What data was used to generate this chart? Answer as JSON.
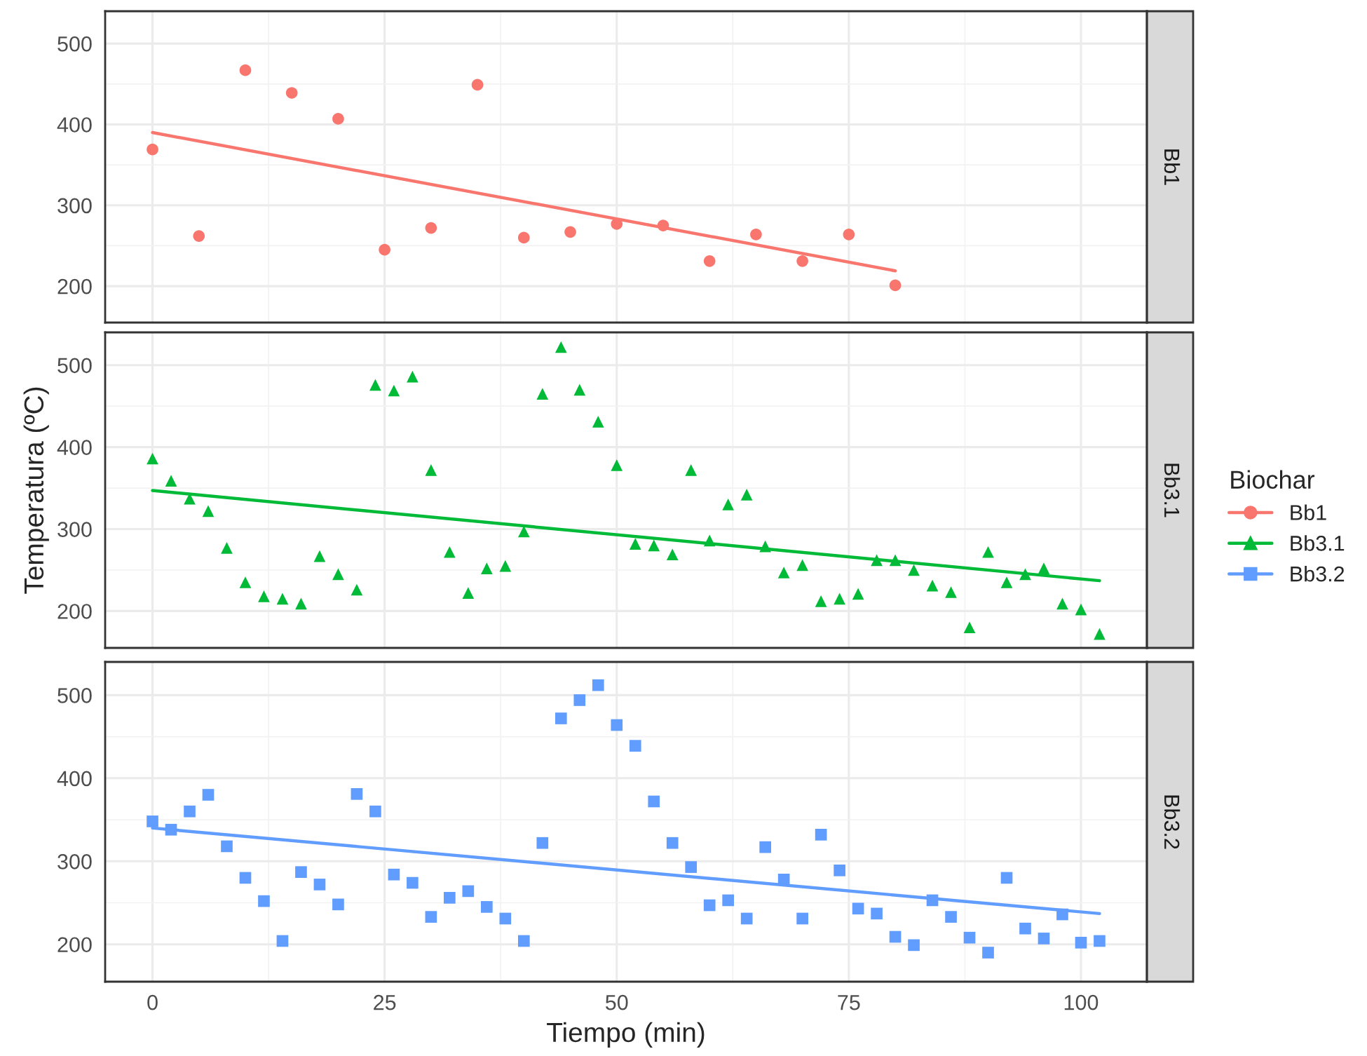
{
  "chart_data": [
    {
      "type": "scatter",
      "annotations": [
        "Bb1"
      ],
      "legend": "right",
      "legend_title": "Biochar",
      "grid": true,
      "tick_labels": "y",
      "xlim": [
        -5.1,
        107.1
      ],
      "xticks": [
        0,
        25,
        50,
        75,
        100
      ],
      "ylim": [
        155,
        540
      ],
      "yticks": [
        200,
        300,
        400,
        500
      ],
      "series": [
        {
          "name": "Bb1",
          "color": "#f8766d",
          "marker": "circle",
          "x": [
            0,
            5,
            10,
            15,
            20,
            25,
            30,
            35,
            40,
            45,
            50,
            55,
            60,
            65,
            70,
            75,
            80
          ],
          "values": [
            369,
            262,
            467,
            439,
            407,
            245,
            272,
            449,
            260,
            267,
            277,
            275,
            231,
            264,
            231,
            264,
            201
          ]
        },
        {
          "type": "line",
          "color": "#f8766d",
          "x": [
            0,
            80
          ],
          "values": [
            390,
            219
          ]
        }
      ]
    },
    {
      "type": "scatter",
      "annotations": [
        "Bb3.1"
      ],
      "ylabel": "Temperatura (ºC)",
      "legend": "right",
      "grid": true,
      "tick_labels": "y",
      "xlim": [
        -5.1,
        107.1
      ],
      "xticks": [
        0,
        25,
        50,
        75,
        100
      ],
      "ylim": [
        155,
        540
      ],
      "yticks": [
        200,
        300,
        400,
        500
      ],
      "series": [
        {
          "name": "Bb3.1",
          "color": "#00ba38",
          "marker": "triangle",
          "x": [
            0,
            2,
            4,
            6,
            8,
            10,
            12,
            14,
            16,
            18,
            20,
            22,
            24,
            26,
            28,
            30,
            32,
            34,
            36,
            38,
            40,
            42,
            44,
            46,
            48,
            50,
            52,
            54,
            56,
            58,
            60,
            62,
            64,
            66,
            68,
            70,
            72,
            74,
            76,
            78,
            80,
            82,
            84,
            86,
            88,
            90,
            92,
            94,
            96,
            98,
            100,
            102
          ],
          "values": [
            386,
            359,
            337,
            322,
            277,
            235,
            218,
            215,
            209,
            267,
            245,
            226,
            476,
            469,
            486,
            372,
            272,
            222,
            252,
            255,
            297,
            465,
            522,
            470,
            431,
            378,
            282,
            280,
            269,
            372,
            286,
            330,
            342,
            279,
            247,
            256,
            212,
            215,
            221,
            262,
            262,
            250,
            231,
            223,
            180,
            272,
            235,
            245,
            252,
            209,
            202,
            172
          ]
        },
        {
          "type": "line",
          "color": "#00ba38",
          "x": [
            0,
            102
          ],
          "values": [
            347,
            237
          ]
        }
      ]
    },
    {
      "type": "scatter",
      "annotations": [
        "Bb3.2"
      ],
      "xlabel": "Tiempo (min)",
      "legend": "right",
      "grid": true,
      "xlim": [
        -5.1,
        107.1
      ],
      "xticks": [
        0,
        25,
        50,
        75,
        100
      ],
      "ylim": [
        155,
        540
      ],
      "yticks": [
        200,
        300,
        400,
        500
      ],
      "series": [
        {
          "name": "Bb3.2",
          "color": "#619cff",
          "marker": "square",
          "x": [
            0,
            2,
            4,
            6,
            8,
            10,
            12,
            14,
            16,
            18,
            20,
            22,
            24,
            26,
            28,
            30,
            32,
            34,
            36,
            38,
            40,
            42,
            44,
            46,
            48,
            50,
            52,
            54,
            56,
            58,
            60,
            62,
            64,
            66,
            68,
            70,
            72,
            74,
            76,
            78,
            80,
            82,
            84,
            86,
            88,
            90,
            92,
            94,
            96,
            98,
            100,
            102
          ],
          "values": [
            348,
            338,
            360,
            380,
            318,
            280,
            252,
            204,
            287,
            272,
            248,
            381,
            360,
            284,
            274,
            233,
            256,
            264,
            245,
            231,
            204,
            322,
            472,
            494,
            512,
            464,
            439,
            372,
            322,
            293,
            247,
            253,
            231,
            317,
            278,
            231,
            332,
            289,
            243,
            237,
            209,
            199,
            253,
            233,
            208,
            190,
            280,
            219,
            207,
            236,
            202,
            204
          ]
        },
        {
          "type": "line",
          "color": "#619cff",
          "x": [
            0,
            102
          ],
          "values": [
            340,
            237
          ]
        }
      ]
    }
  ]
}
